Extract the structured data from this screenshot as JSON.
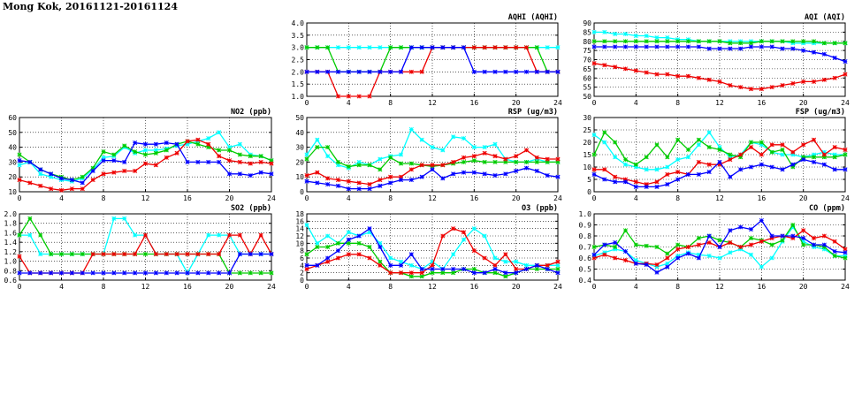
{
  "page_title": "Mong Kok, 20161121-20161124",
  "colors": {
    "series1": "#00ffff",
    "series2": "#00cc00",
    "series3": "#ee0000",
    "series4": "#0000ff"
  },
  "chart_data": [
    {
      "id": "aqhi",
      "type": "line",
      "title": "AQHI (AQHI)",
      "ylim": [
        1,
        4
      ],
      "yticks": [
        "1.0",
        "1.5",
        "2.0",
        "2.5",
        "3.0",
        "3.5",
        "4.0"
      ],
      "xlim": [
        0,
        24
      ],
      "xticks": [
        "0",
        "4",
        "8",
        "12",
        "16",
        "20",
        "24"
      ],
      "grid": true,
      "series": [
        {
          "values": [
            3,
            3,
            3,
            3,
            3,
            3,
            3,
            3,
            3,
            3,
            3,
            3,
            3,
            3,
            3,
            3,
            3,
            3,
            3,
            3,
            3,
            3,
            3,
            3,
            3
          ]
        },
        {
          "values": [
            3,
            3,
            3,
            2,
            2,
            2,
            2,
            2,
            3,
            3,
            3,
            3,
            3,
            3,
            3,
            3,
            3,
            3,
            3,
            3,
            3,
            3,
            3,
            2,
            2
          ]
        },
        {
          "values": [
            2,
            2,
            2,
            1,
            1,
            1,
            1,
            2,
            2,
            2,
            2,
            2,
            3,
            3,
            3,
            3,
            3,
            3,
            3,
            3,
            3,
            3,
            2,
            2,
            2
          ]
        },
        {
          "values": [
            2,
            2,
            2,
            2,
            2,
            2,
            2,
            2,
            2,
            2,
            3,
            3,
            3,
            3,
            3,
            3,
            2,
            2,
            2,
            2,
            2,
            2,
            2,
            2,
            2
          ]
        }
      ]
    },
    {
      "id": "aqi",
      "type": "line",
      "title": "AQI (AQI)",
      "ylim": [
        50,
        90
      ],
      "yticks": [
        "50",
        "55",
        "60",
        "65",
        "70",
        "75",
        "80",
        "85",
        "90"
      ],
      "xlim": [
        0,
        24
      ],
      "xticks": [
        "0",
        "4",
        "8",
        "12",
        "16",
        "20",
        "24"
      ],
      "grid": true,
      "series": [
        {
          "values": [
            85,
            85,
            84,
            84,
            83,
            83,
            82,
            82,
            81,
            81,
            80,
            80,
            80,
            80,
            80,
            80,
            80,
            80,
            80,
            79,
            79,
            79,
            79,
            79,
            79
          ]
        },
        {
          "values": [
            80,
            80,
            80,
            80,
            80,
            80,
            80,
            80,
            80,
            80,
            80,
            80,
            80,
            79,
            79,
            79,
            80,
            80,
            80,
            80,
            80,
            80,
            79,
            79,
            79
          ]
        },
        {
          "values": [
            68,
            67,
            66,
            65,
            64,
            63,
            62,
            62,
            61,
            61,
            60,
            59,
            58,
            56,
            55,
            54,
            54,
            55,
            56,
            57,
            58,
            58,
            59,
            60,
            62
          ]
        },
        {
          "values": [
            77,
            77,
            77,
            77,
            77,
            77,
            77,
            77,
            77,
            77,
            77,
            76,
            76,
            76,
            76,
            77,
            77,
            77,
            76,
            76,
            75,
            74,
            73,
            71,
            69
          ]
        }
      ]
    },
    {
      "id": "no2",
      "type": "line",
      "title": "NO2 (ppb)",
      "ylim": [
        10,
        60
      ],
      "yticks": [
        "10",
        "20",
        "30",
        "40",
        "50",
        "60"
      ],
      "xlim": [
        0,
        24
      ],
      "xticks": [
        "0",
        "4",
        "8",
        "12",
        "16",
        "20",
        "24"
      ],
      "grid": true,
      "series": [
        {
          "values": [
            28,
            30,
            22,
            20,
            18,
            17,
            19,
            25,
            33,
            34,
            40,
            36,
            38,
            38,
            39,
            41,
            42,
            44,
            46,
            50,
            40,
            42,
            35,
            34,
            31
          ]
        },
        {
          "values": [
            35,
            30,
            25,
            22,
            20,
            18,
            20,
            26,
            37,
            35,
            41,
            37,
            35,
            36,
            38,
            42,
            44,
            42,
            40,
            38,
            38,
            35,
            34,
            34,
            31
          ]
        },
        {
          "values": [
            18,
            16,
            14,
            12,
            11,
            12,
            12,
            18,
            22,
            23,
            24,
            24,
            29,
            28,
            33,
            36,
            44,
            45,
            42,
            34,
            31,
            30,
            29,
            30,
            29
          ]
        },
        {
          "values": [
            31,
            30,
            25,
            22,
            19,
            18,
            16,
            24,
            31,
            31,
            30,
            43,
            42,
            42,
            43,
            42,
            30,
            30,
            30,
            30,
            22,
            22,
            21,
            23,
            22
          ]
        }
      ]
    },
    {
      "id": "rsp",
      "type": "line",
      "title": "RSP (ug/m3)",
      "ylim": [
        0,
        50
      ],
      "yticks": [
        "0",
        "10",
        "20",
        "30",
        "40",
        "50"
      ],
      "xlim": [
        0,
        24
      ],
      "xticks": [
        "0",
        "4",
        "8",
        "12",
        "16",
        "20",
        "24"
      ],
      "grid": true,
      "series": [
        {
          "values": [
            25,
            35,
            24,
            18,
            16,
            20,
            18,
            22,
            24,
            25,
            42,
            35,
            30,
            28,
            37,
            36,
            30,
            30,
            32,
            22,
            20,
            20,
            22,
            20,
            20
          ]
        },
        {
          "values": [
            22,
            30,
            30,
            20,
            17,
            18,
            18,
            15,
            23,
            19,
            19,
            18,
            17,
            18,
            19,
            20,
            21,
            20,
            20,
            20,
            20,
            20,
            20,
            20,
            20
          ]
        },
        {
          "values": [
            11,
            13,
            9,
            8,
            7,
            6,
            5,
            8,
            10,
            10,
            15,
            18,
            18,
            18,
            20,
            23,
            24,
            26,
            24,
            22,
            24,
            28,
            23,
            22,
            22
          ]
        },
        {
          "values": [
            7,
            6,
            5,
            4,
            2,
            2,
            2,
            4,
            6,
            8,
            8,
            10,
            15,
            9,
            12,
            13,
            13,
            12,
            11,
            12,
            14,
            16,
            14,
            11,
            10
          ]
        }
      ]
    },
    {
      "id": "fsp",
      "type": "line",
      "title": "FSP (ug/m3)",
      "ylim": [
        0,
        30
      ],
      "yticks": [
        "0",
        "5",
        "10",
        "15",
        "20",
        "25",
        "30"
      ],
      "xlim": [
        0,
        24
      ],
      "xticks": [
        "0",
        "4",
        "8",
        "12",
        "16",
        "20",
        "24"
      ],
      "grid": true,
      "series": [
        {
          "values": [
            23,
            20,
            14,
            11,
            10,
            9,
            9,
            10,
            13,
            14,
            19,
            24,
            18,
            14,
            15,
            20,
            19,
            16,
            15,
            15,
            14,
            15,
            16,
            15,
            15
          ]
        },
        {
          "values": [
            15,
            24,
            20,
            13,
            11,
            14,
            19,
            14,
            21,
            17,
            21,
            18,
            17,
            15,
            14,
            20,
            20,
            16,
            17,
            10,
            14,
            14,
            14,
            14,
            15
          ]
        },
        {
          "values": [
            9,
            9,
            6,
            5,
            4,
            3,
            4,
            7,
            8,
            7,
            12,
            11,
            11,
            13,
            15,
            18,
            15,
            19,
            19,
            16,
            19,
            21,
            15,
            18,
            17
          ]
        },
        {
          "values": [
            7,
            5,
            4,
            4,
            2,
            2,
            2,
            3,
            5,
            7,
            7,
            8,
            12,
            6,
            9,
            10,
            11,
            10,
            9,
            11,
            13,
            12,
            11,
            9,
            9
          ]
        }
      ]
    },
    {
      "id": "so2",
      "type": "line",
      "title": "SO2 (ppb)",
      "ylim": [
        0.6,
        2.0
      ],
      "yticks": [
        "0.6",
        "0.8",
        "1.0",
        "1.2",
        "1.4",
        "1.6",
        "1.8",
        "2.0"
      ],
      "xlim": [
        0,
        24
      ],
      "xticks": [
        "0",
        "4",
        "8",
        "12",
        "16",
        "20",
        "24"
      ],
      "grid": true,
      "series": [
        {
          "values": [
            1.55,
            1.55,
            1.15,
            1.15,
            1.15,
            1.15,
            1.15,
            1.15,
            1.15,
            1.9,
            1.9,
            1.55,
            1.55,
            1.15,
            1.15,
            1.15,
            0.75,
            1.15,
            1.55,
            1.55,
            1.55,
            1.15,
            1.15,
            1.15,
            1.15
          ]
        },
        {
          "values": [
            1.55,
            1.9,
            1.55,
            1.15,
            1.15,
            1.15,
            1.15,
            1.15,
            1.15,
            1.15,
            1.15,
            1.15,
            1.15,
            1.15,
            1.15,
            1.15,
            1.15,
            1.15,
            1.15,
            1.15,
            0.75,
            0.75,
            0.75,
            0.75,
            0.75
          ]
        },
        {
          "values": [
            1.1,
            0.75,
            0.75,
            0.75,
            0.75,
            0.75,
            0.75,
            1.15,
            1.15,
            1.15,
            1.15,
            1.15,
            1.55,
            1.15,
            1.15,
            1.15,
            1.15,
            1.15,
            1.15,
            1.15,
            1.55,
            1.55,
            1.15,
            1.55,
            1.15
          ]
        },
        {
          "values": [
            0.75,
            0.75,
            0.75,
            0.75,
            0.75,
            0.75,
            0.75,
            0.75,
            0.75,
            0.75,
            0.75,
            0.75,
            0.75,
            0.75,
            0.75,
            0.75,
            0.75,
            0.75,
            0.75,
            0.75,
            0.75,
            1.15,
            1.15,
            1.15,
            1.15
          ]
        }
      ]
    },
    {
      "id": "o3",
      "type": "line",
      "title": "O3 (ppb)",
      "ylim": [
        0,
        18
      ],
      "yticks": [
        "0",
        "2",
        "4",
        "6",
        "8",
        "10",
        "12",
        "14",
        "16",
        "18"
      ],
      "xlim": [
        0,
        24
      ],
      "xticks": [
        "0",
        "4",
        "8",
        "12",
        "16",
        "20",
        "24"
      ],
      "grid": true,
      "series": [
        {
          "values": [
            15,
            10,
            12,
            10,
            13,
            12,
            13,
            10,
            6,
            5,
            4,
            3,
            5,
            3,
            7,
            11,
            14,
            12,
            6,
            5,
            5,
            4,
            4,
            4,
            4
          ]
        },
        {
          "values": [
            7,
            9,
            9,
            10,
            10,
            10,
            9,
            5,
            2,
            2,
            1,
            1,
            2,
            2,
            2,
            3,
            3,
            2,
            2,
            1,
            2,
            3,
            3,
            3,
            3
          ]
        },
        {
          "values": [
            3,
            4,
            5,
            6,
            7,
            7,
            6,
            4,
            2,
            2,
            2,
            2,
            4,
            12,
            14,
            13,
            8,
            6,
            4,
            7,
            3,
            3,
            4,
            4,
            5
          ]
        },
        {
          "values": [
            4,
            4,
            6,
            8,
            11,
            12,
            14,
            9,
            4,
            4,
            7,
            3,
            3,
            3,
            3,
            3,
            2,
            2,
            3,
            2,
            2,
            3,
            4,
            3,
            2
          ]
        }
      ]
    },
    {
      "id": "co",
      "type": "line",
      "title": "CO (ppm)",
      "ylim": [
        0.4,
        1.0
      ],
      "yticks": [
        "0.4",
        "0.5",
        "0.6",
        "0.7",
        "0.8",
        "0.9",
        "1.0"
      ],
      "xlim": [
        0,
        24
      ],
      "xticks": [
        "0",
        "4",
        "8",
        "12",
        "16",
        "20",
        "24"
      ],
      "grid": true,
      "series": [
        {
          "values": [
            0.62,
            0.65,
            0.68,
            0.66,
            0.58,
            0.55,
            0.52,
            0.55,
            0.62,
            0.65,
            0.63,
            0.62,
            0.6,
            0.65,
            0.68,
            0.63,
            0.52,
            0.6,
            0.75,
            0.88,
            0.75,
            0.7,
            0.68,
            0.62,
            0.62
          ]
        },
        {
          "values": [
            0.7,
            0.72,
            0.7,
            0.85,
            0.72,
            0.71,
            0.7,
            0.64,
            0.72,
            0.7,
            0.78,
            0.8,
            0.76,
            0.74,
            0.7,
            0.78,
            0.76,
            0.72,
            0.76,
            0.9,
            0.72,
            0.72,
            0.7,
            0.62,
            0.6
          ]
        },
        {
          "values": [
            0.6,
            0.63,
            0.6,
            0.58,
            0.55,
            0.55,
            0.54,
            0.6,
            0.68,
            0.7,
            0.72,
            0.74,
            0.7,
            0.74,
            0.7,
            0.72,
            0.75,
            0.78,
            0.8,
            0.78,
            0.85,
            0.78,
            0.8,
            0.75,
            0.68
          ]
        },
        {
          "values": [
            0.63,
            0.72,
            0.74,
            0.66,
            0.55,
            0.54,
            0.47,
            0.52,
            0.6,
            0.64,
            0.6,
            0.8,
            0.7,
            0.85,
            0.88,
            0.86,
            0.94,
            0.8,
            0.8,
            0.8,
            0.78,
            0.72,
            0.72,
            0.66,
            0.65
          ]
        }
      ]
    }
  ]
}
